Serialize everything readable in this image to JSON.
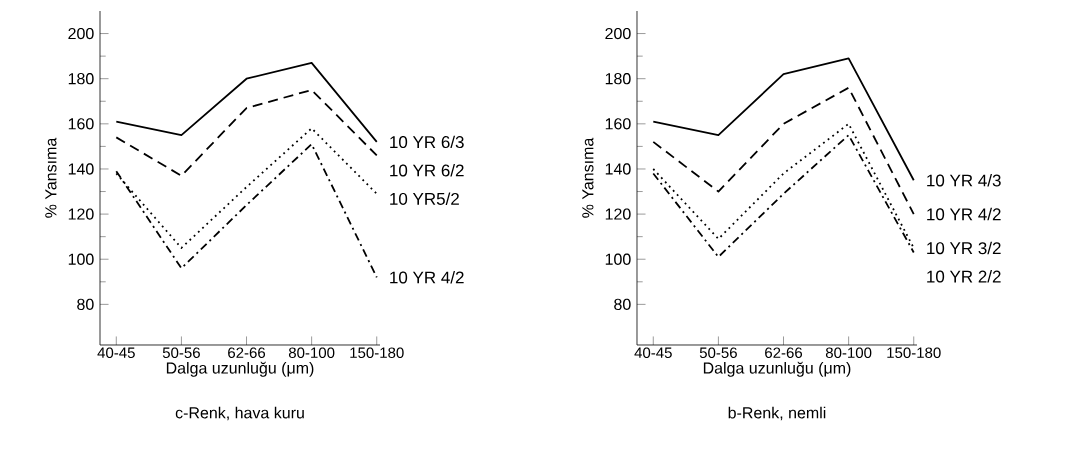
{
  "chart_data": [
    {
      "type": "line",
      "title": "c-Renk, hava kuru",
      "xlabel": "Dalga uzunluğu (μm)",
      "ylabel": "% Yansıma",
      "categories": [
        "40-45",
        "50-56",
        "62-66",
        "80-100",
        "150-180"
      ],
      "ylim": [
        62,
        210
      ],
      "yticks": [
        80,
        100,
        120,
        140,
        160,
        180,
        200
      ],
      "series": [
        {
          "name": "10 YR 6/3",
          "color": "#000000",
          "line_style": "solid",
          "values": [
            161,
            155,
            180,
            187,
            152
          ]
        },
        {
          "name": "10 YR 6/2",
          "color": "#000000",
          "line_style": "dashed",
          "values": [
            154,
            137,
            167,
            175,
            146
          ]
        },
        {
          "name": "10 YR5/2",
          "color": "#000000",
          "line_style": "dotted",
          "values": [
            138,
            105,
            132,
            158,
            129
          ]
        },
        {
          "name": "10 YR 4/2",
          "color": "#000000",
          "line_style": "dashdot",
          "values": [
            139,
            96,
            124,
            151,
            92
          ]
        }
      ]
    },
    {
      "type": "line",
      "title": "b-Renk, nemli",
      "xlabel": "Dalga uzunluğu (μm)",
      "ylabel": "% Yansıma",
      "categories": [
        "40-45",
        "50-56",
        "62-66",
        "80-100",
        "150-180"
      ],
      "ylim": [
        62,
        210
      ],
      "yticks": [
        80,
        100,
        120,
        140,
        160,
        180,
        200
      ],
      "series": [
        {
          "name": "10 YR 4/3",
          "color": "#000000",
          "line_style": "solid",
          "values": [
            161,
            155,
            182,
            189,
            135
          ]
        },
        {
          "name": "10 YR 4/2",
          "color": "#000000",
          "line_style": "dashed",
          "values": [
            152,
            130,
            160,
            176,
            120
          ]
        },
        {
          "name": "10 YR 3/2",
          "color": "#000000",
          "line_style": "dotted",
          "values": [
            140,
            109,
            138,
            160,
            105
          ]
        },
        {
          "name": "10 YR 2/2",
          "color": "#000000",
          "line_style": "dashdot",
          "values": [
            138,
            101,
            129,
            155,
            103
          ]
        }
      ]
    }
  ]
}
